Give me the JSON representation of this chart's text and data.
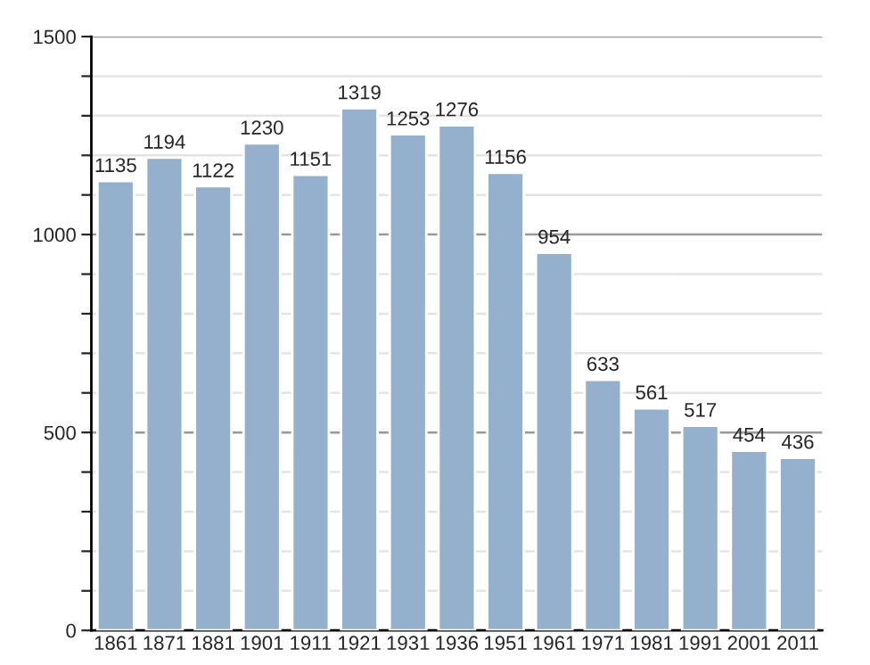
{
  "chart_data": {
    "type": "bar",
    "categories": [
      "1861",
      "1871",
      "1881",
      "1901",
      "1911",
      "1921",
      "1931",
      "1936",
      "1951",
      "1961",
      "1971",
      "1981",
      "1991",
      "2001",
      "2011"
    ],
    "values": [
      1135,
      1194,
      1122,
      1230,
      1151,
      1319,
      1253,
      1276,
      1156,
      954,
      633,
      561,
      517,
      454,
      436
    ],
    "color": "#94b0cc",
    "ylim": [
      0,
      1500
    ],
    "yticks": [
      0,
      {
        "value": 100,
        "label": null
      },
      {
        "value": 200,
        "label": null
      },
      {
        "value": 300,
        "label": null
      },
      {
        "value": 400,
        "label": null
      },
      500,
      {
        "value": 600,
        "label": null
      },
      {
        "value": 700,
        "label": null
      },
      {
        "value": 800,
        "label": null
      },
      {
        "value": 900,
        "label": null
      },
      1000,
      {
        "value": 1100,
        "label": null
      },
      {
        "value": 1200,
        "label": null
      },
      {
        "value": 1300,
        "label": null
      },
      {
        "value": 1400,
        "label": null
      },
      1500
    ],
    "grid": "y",
    "data_labels": true
  }
}
